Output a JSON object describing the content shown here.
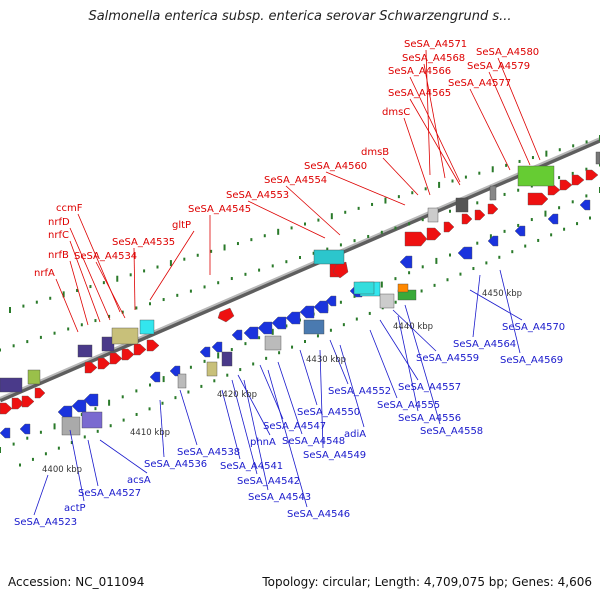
{
  "title": "Salmonella enterica subsp. enterica serovar Schwarzengrund s...",
  "footer": {
    "accession": "Accession: NC_011094",
    "stats": "Topology: circular; Length: 4,709,075 bp; Genes: 4,606"
  },
  "colors": {
    "forward_label": "#dd0000",
    "reverse_label": "#1a1acc",
    "forward_gene": "#ee1111",
    "reverse_gene": "#1a33dd",
    "backbone": "#8c8c8c",
    "tick": "#2a7a2a"
  },
  "kbp_labels": [
    "4400 kbp",
    "4410 kbp",
    "4420 kbp",
    "4430 kbp",
    "4440 kbp",
    "4450 kbp"
  ],
  "forward_labels": [
    "SeSA_A4571",
    "SeSA_A4580",
    "SeSA_A4568",
    "SeSA_A4579",
    "SeSA_A4566",
    "SeSA_A4577",
    "SeSA_A4565",
    "dmsC",
    "dmsB",
    "SeSA_A4560",
    "SeSA_A4554",
    "SeSA_A4553",
    "SeSA_A4545",
    "ccmF",
    "nrfD",
    "gltP",
    "nrfC",
    "SeSA_A4535",
    "nrfB",
    "SeSA_A4534",
    "nrfA"
  ],
  "reverse_labels": [
    "SeSA_A4570",
    "SeSA_A4564",
    "SeSA_A4569",
    "SeSA_A4559",
    "SeSA_A4557",
    "SeSA_A4552",
    "SeSA_A4555",
    "SeSA_A4550",
    "SeSA_A4556",
    "SeSA_A4547",
    "adiA",
    "SeSA_A4548",
    "SeSA_A4558",
    "SeSA_A4549",
    "SeSA_A4538",
    "phnA",
    "SeSA_A4536",
    "SeSA_A4541",
    "acsA",
    "SeSA_A4542",
    "SeSA_A4527",
    "SeSA_A4543",
    "actP",
    "SeSA_A4546",
    "SeSA_A4523"
  ]
}
